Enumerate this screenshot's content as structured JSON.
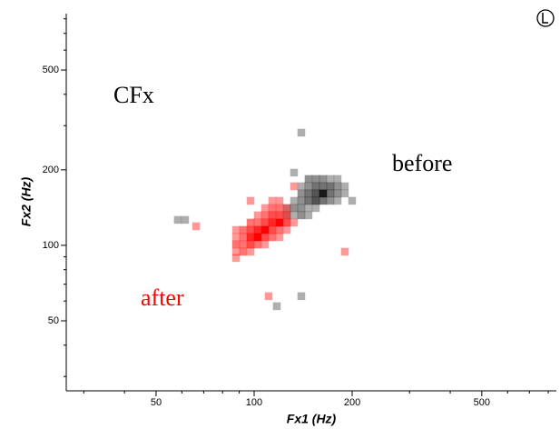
{
  "chart_data": {
    "type": "heatmap-scatter",
    "annotation": "CFx",
    "xlabel": "Fx1 (Hz)",
    "ylabel": "Fx2 (Hz)",
    "xscale": "log",
    "yscale": "log",
    "xlim": [
      26.5,
      847
    ],
    "ylim": [
      26.3,
      839
    ],
    "xticks": [
      50,
      100,
      200,
      500
    ],
    "yticks": [
      50,
      100,
      200,
      500
    ],
    "xminorticks": [
      30,
      40,
      60,
      70,
      80,
      90,
      300,
      400,
      600,
      700,
      800
    ],
    "yminorticks": [
      30,
      40,
      60,
      70,
      80,
      90,
      300,
      400,
      600,
      700,
      800
    ],
    "series": [
      {
        "name": "before",
        "color": "#000000",
        "x": [
          139.6,
          132.6,
          146.9,
          154.7,
          162.8,
          171.4,
          180.4,
          139.6,
          146.9,
          154.7,
          162.8,
          171.4,
          180.4,
          189.9,
          139.6,
          146.9,
          154.7,
          162.8,
          171.4,
          180.4,
          189.9,
          132.6,
          139.6,
          146.9,
          154.7,
          162.8,
          171.4,
          180.4,
          199.9,
          126.0,
          132.6,
          139.6,
          146.9,
          154.7,
          126.0,
          132.6,
          139.6,
          146.9,
          58.3,
          61.4,
          139.6,
          117.4
        ],
        "y": [
          281.3,
          194.9,
          183.9,
          183.9,
          183.9,
          183.9,
          183.9,
          172.0,
          172.0,
          172.0,
          172.0,
          172.0,
          172.0,
          172.0,
          160.9,
          160.9,
          160.9,
          160.9,
          160.9,
          160.9,
          160.9,
          150.5,
          150.5,
          150.5,
          150.5,
          150.5,
          150.5,
          150.5,
          150.5,
          140.8,
          140.8,
          140.8,
          140.8,
          140.8,
          131.7,
          131.7,
          131.7,
          131.7,
          126.3,
          126.3,
          62.7,
          57.2
        ],
        "values": [
          1,
          1,
          2,
          2,
          2,
          1,
          1,
          1,
          2,
          3,
          3,
          3,
          2,
          1,
          2,
          3,
          4,
          6,
          3,
          2,
          1,
          1,
          2,
          3,
          4,
          3,
          2,
          1,
          1,
          1,
          2,
          2,
          1,
          1,
          1,
          1,
          2,
          1,
          1,
          1,
          1,
          1
        ]
      },
      {
        "name": "after",
        "color": "#ff0000",
        "x": [
          132.6,
          97.5,
          113.7,
          119.7,
          108.0,
          113.7,
          119.7,
          126.0,
          102.6,
          108.0,
          113.7,
          119.7,
          126.0,
          97.5,
          102.6,
          108.0,
          113.7,
          119.7,
          126.0,
          132.6,
          88.0,
          92.6,
          97.5,
          102.6,
          108.0,
          113.7,
          119.7,
          126.0,
          88.0,
          92.6,
          97.5,
          102.6,
          108.0,
          113.7,
          119.7,
          88.0,
          92.6,
          97.5,
          102.6,
          108.0,
          88.0,
          92.6,
          97.5,
          88.0,
          66.4,
          189.9,
          110.8
        ],
        "y": [
          172.0,
          150.5,
          150.5,
          150.5,
          140.8,
          140.8,
          140.8,
          140.8,
          131.7,
          131.7,
          131.7,
          131.7,
          131.7,
          123.2,
          123.2,
          123.2,
          123.2,
          123.2,
          123.2,
          123.2,
          115.2,
          115.2,
          115.2,
          115.2,
          115.2,
          115.2,
          115.2,
          115.2,
          107.8,
          107.8,
          107.8,
          107.8,
          107.8,
          107.8,
          107.8,
          100.8,
          100.8,
          100.8,
          100.8,
          100.8,
          94.3,
          94.3,
          94.3,
          89.0,
          119.2,
          94.3,
          62.7
        ],
        "values": [
          1,
          1,
          1,
          1,
          1,
          2,
          2,
          1,
          1,
          2,
          3,
          3,
          2,
          2,
          2,
          3,
          4,
          5,
          3,
          1,
          1,
          2,
          3,
          4,
          5,
          3,
          2,
          1,
          1,
          2,
          4,
          5,
          3,
          2,
          1,
          2,
          2,
          3,
          2,
          1,
          1,
          2,
          1,
          1,
          1,
          1,
          1
        ]
      }
    ]
  }
}
